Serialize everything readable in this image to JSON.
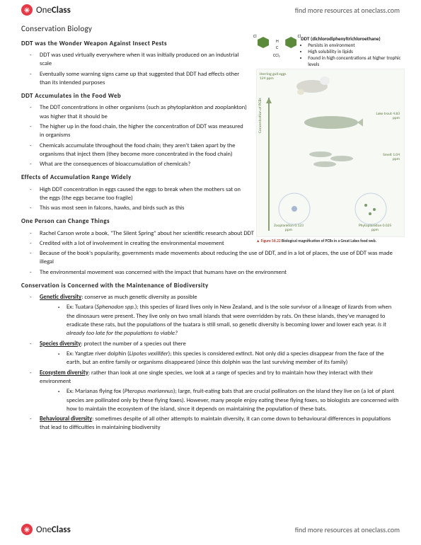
{
  "brand": {
    "one": "One",
    "class": "Class",
    "tagline": "find more resources at oneclass.com"
  },
  "title": "Conservation Biology",
  "sections": [
    {
      "heading": "DDT was the Wonder Weapon Against Insect Pests",
      "narrow": true,
      "items": [
        "DDT was used virtually everywhere when it was initially produced on an industrial scale",
        "Eventually some warning signs came up that suggested that DDT had effects other than its intended purposes"
      ]
    },
    {
      "heading": "DDT Accumulates in the Food Web",
      "narrow": true,
      "items": [
        "The DDT concentrations in other organisms (such as phytoplankton and zooplankton) was higher that it should be",
        "The higher up in the food chain, the higher the concentration of DDT was measured in organisms",
        "Chemicals accumulate throughout the food chain; they aren't taken apart by the organisms that inject them (they become more concentrated in the food chain)",
        "What are the consequences of bioaccumulation of chemicals?"
      ]
    },
    {
      "heading": "Effects of Accumulation Range Widely",
      "narrow": true,
      "items": [
        "High DDT concentration in eggs caused the eggs to break when the mothers sat on the eggs (the eggs became too fragile)",
        "This was most seen in falcons, hawks, and birds such as this"
      ]
    },
    {
      "heading": "One Person can Change Things",
      "items": [
        "Rachel Carson wrote a book, \"The Silent Spring\" about her scientific research about DDT",
        "Credited with a lot of involvement in creating the environmental movement",
        "Because of the book's popularity, governments made movements about reducing the use of DDT, and in a lot of places, the use of DDT was made illegal",
        "The environmental movement was concerned with the impact that humans have on the environment"
      ]
    }
  ],
  "biodiversity": {
    "heading": "Conservation is Concerned with the Maintenance of Biodiversity",
    "items": [
      {
        "term": "Genetic diversity",
        "def": ": conserve as much genetic diversity as possible",
        "sub": [
          "Ex: Tuatara (<i>Sphenodon spp.</i>); this species of lizard lives only in New Zealand, and is the sole survivor of a lineage of lizards from when the dinosaurs were present. They live only on two small islands that were overridden by rats. On these islands, they've managed to eradicate these rats, but the populations of the tuatara is still small, so genetic diversity is becoming lower and lower each year. <i>Is it already too late for the populations to viable?</i>"
        ]
      },
      {
        "term": "Species diversity",
        "def": ": protect the number of a species out there",
        "sub": [
          "Ex: Yangtze river dolphin (<i>Lipotes vexillifer</i>); this species is considered extinct. Not only did a species disappear from the face of the earth, but an entire family or organisms disappeared (since this dolphin was the last surviving member of its family)"
        ]
      },
      {
        "term": "Ecosystem diversity",
        "def": ": rather than look at one single species, we look at a range of species and try to maintain how they interact with their environment",
        "sub": [
          "Ex: Marianas flying fox (<i>Pteropus mariannus</i>); large, fruit-eating bats that are crucial pollinators on the island they live on (a lot of plant species are pollinated only by these flying foxes). However, many people enjoy eating these flying foxes, so biologists are concerned with how to maintain the ecosystem of the island, since it depends on maintaining the population of these bats."
        ]
      },
      {
        "term": "Behavioural diversity",
        "def": ": sometimes despite of all other attempts to maintain diversity, it can come down to behavioural differences in populations that lead to difficulties in maintaining biodiversity",
        "sub": []
      }
    ]
  },
  "figure": {
    "ddt_title": "DDT (dichlorodiphenyltrichloroethane)",
    "ddt_points": [
      "Persists in environment",
      "High solubility in lipids",
      "Found in high concentrations at higher trophic levels"
    ],
    "atoms": {
      "cl1": "Cl",
      "cl2": "Cl",
      "h": "H",
      "c": "C",
      "ccl3": "CCl₃"
    },
    "web": {
      "gull": "Herring gull eggs 124 ppm",
      "lake": "Lake trout 4.83 ppm",
      "smelt": "Smelt 1.04 ppm",
      "zoo": "Zooplankton 0.123 ppm",
      "phyto": "Phytoplankton 0.025 ppm",
      "axis": "Concentration of PCBs"
    },
    "caption_label": "▲ Figure 56.22",
    "caption_text": "Biological magnification of PCBs in a Great Lakes food web."
  }
}
